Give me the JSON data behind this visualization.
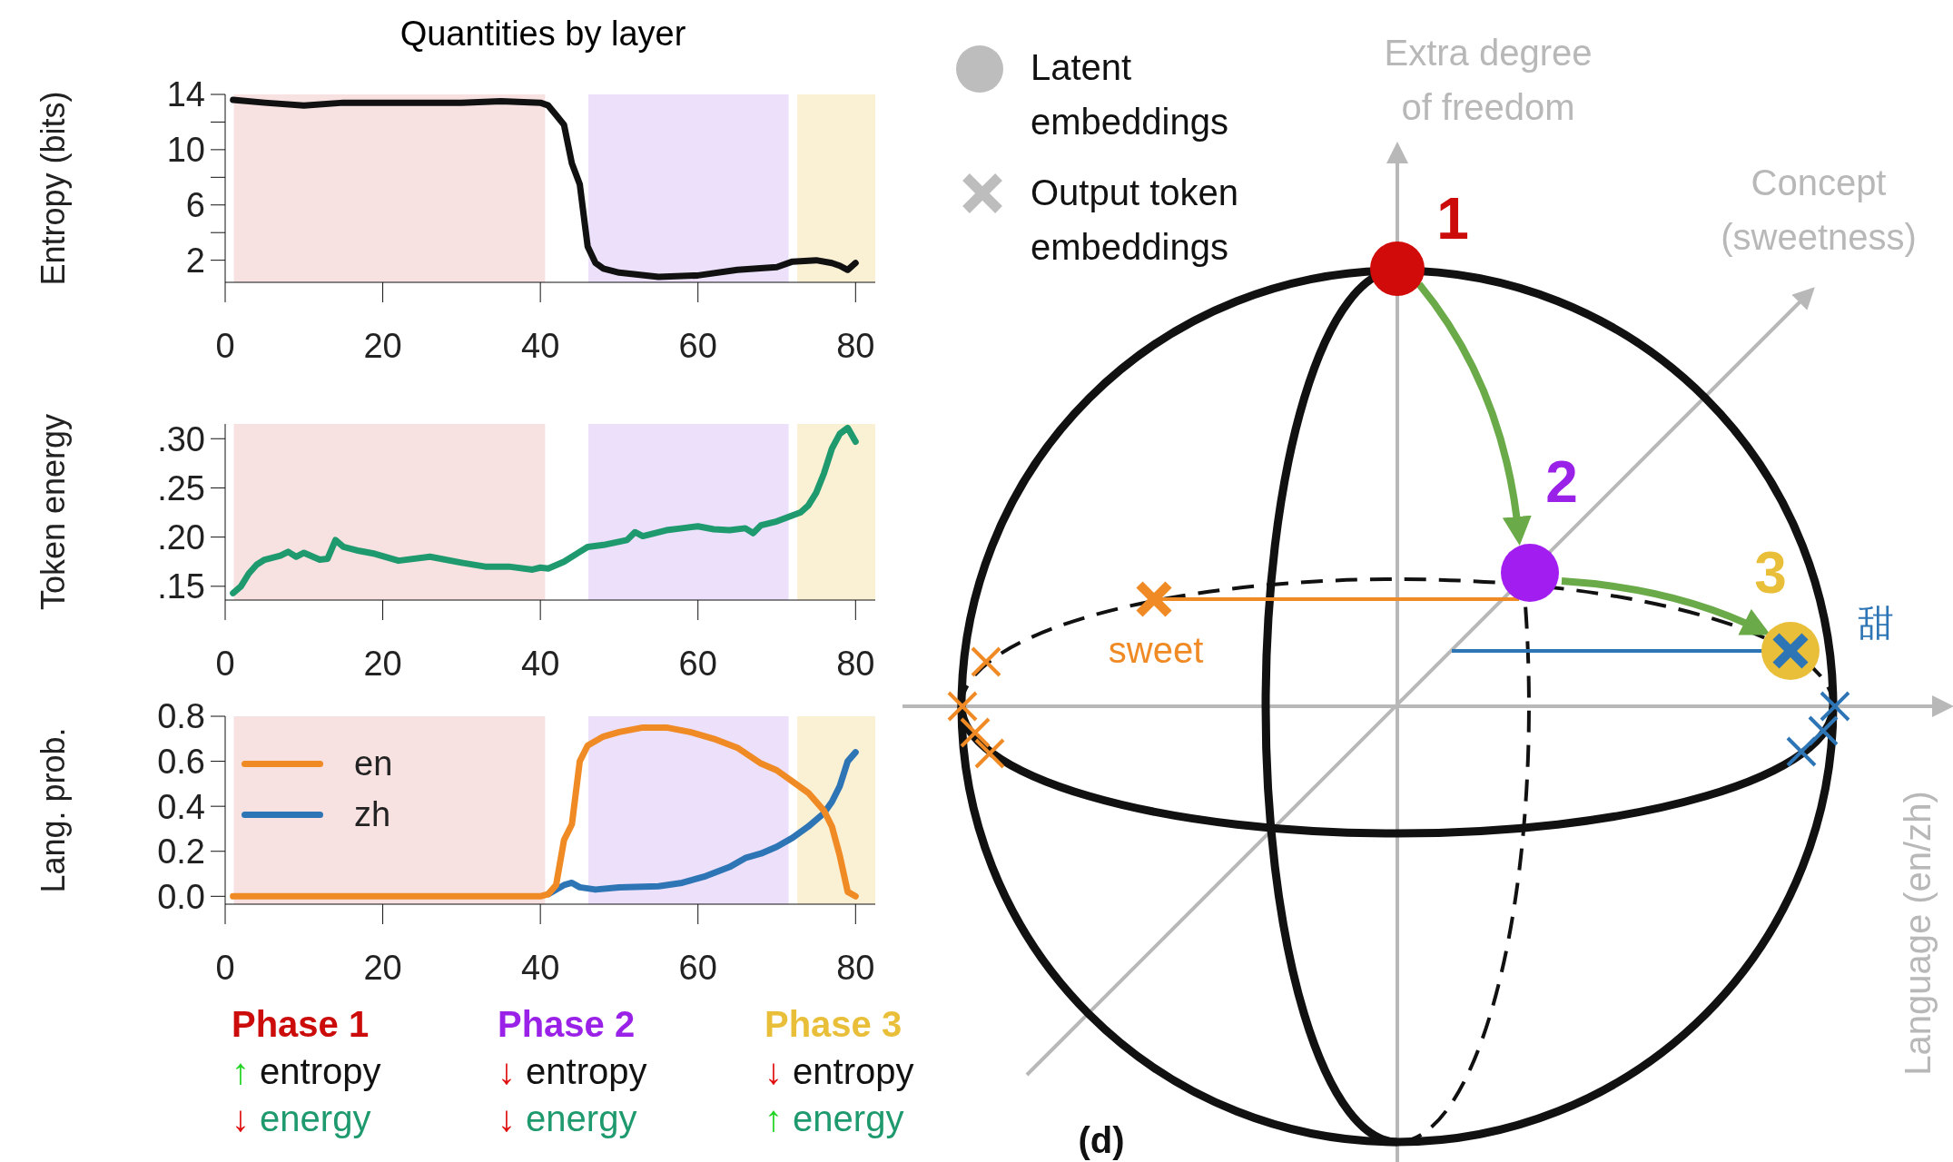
{
  "chart_data": [
    {
      "type": "line",
      "title": "Quantities by layer",
      "ylabel": "Entropy (bits)",
      "xlim": [
        0,
        82.5
      ],
      "xticks": [
        0,
        20,
        40,
        60,
        80
      ],
      "ylim": [
        0.4,
        14
      ],
      "yticks": [
        2,
        {
          "value": 4,
          "label": null
        },
        6,
        {
          "value": 8,
          "label": null
        },
        10,
        {
          "value": 12,
          "label": null
        },
        14
      ],
      "grid": false,
      "legend": false,
      "marker": "none",
      "bands": [
        {
          "axis": "x",
          "from": 1.1,
          "to": 40.6,
          "color": "#f7e1e1"
        },
        {
          "axis": "x",
          "from": 46.1,
          "to": 71.5,
          "color": "#ece0fb"
        },
        {
          "axis": "x",
          "from": 72.6,
          "to": 82.5,
          "color": "#faf0d4"
        }
      ],
      "series": [
        {
          "color": "#111111",
          "x": [
            1,
            5,
            10,
            15,
            20,
            25,
            30,
            35,
            40,
            41,
            42,
            43,
            44,
            45,
            46,
            47,
            48,
            50,
            55,
            60,
            65,
            70,
            72,
            75,
            77,
            78,
            79,
            80
          ],
          "values": [
            13.6,
            13.4,
            13.2,
            13.4,
            13.4,
            13.4,
            13.4,
            13.5,
            13.4,
            13.2,
            12.5,
            11.8,
            9,
            7.5,
            3,
            1.8,
            1.4,
            1.1,
            0.8,
            0.9,
            1.3,
            1.5,
            1.9,
            2.0,
            1.8,
            1.6,
            1.3,
            1.8
          ]
        }
      ]
    },
    {
      "type": "line",
      "ylabel": "Token energy",
      "xlim": [
        0,
        82.5
      ],
      "xticks": [
        0,
        20,
        40,
        60,
        80
      ],
      "ylim": [
        0.136,
        0.315
      ],
      "yticks": [
        {
          "value": 0.15,
          "label": ".15"
        },
        {
          "value": 0.2,
          "label": ".20"
        },
        {
          "value": 0.25,
          "label": ".25"
        },
        {
          "value": 0.3,
          "label": ".30"
        }
      ],
      "grid": false,
      "legend": false,
      "marker": "none",
      "bands": [
        {
          "axis": "x",
          "from": 1.1,
          "to": 40.6,
          "color": "#f7e1e1"
        },
        {
          "axis": "x",
          "from": 46.1,
          "to": 71.5,
          "color": "#ece0fb"
        },
        {
          "axis": "x",
          "from": 72.6,
          "to": 82.5,
          "color": "#faf0d4"
        }
      ],
      "series": [
        {
          "color": "#1f9a6f",
          "x": [
            1,
            2,
            3,
            4,
            5,
            7,
            8,
            9,
            10,
            12,
            13,
            14,
            15,
            17,
            19,
            22,
            26,
            30,
            33,
            36,
            39,
            40,
            41,
            43,
            45,
            46,
            48,
            51,
            52,
            53,
            56,
            58,
            60,
            62,
            64,
            66,
            67,
            68,
            70,
            72,
            73,
            74,
            75,
            76,
            77,
            78,
            79,
            80
          ],
          "values": [
            0.143,
            0.15,
            0.163,
            0.172,
            0.177,
            0.181,
            0.185,
            0.18,
            0.184,
            0.177,
            0.178,
            0.197,
            0.19,
            0.186,
            0.183,
            0.176,
            0.18,
            0.174,
            0.17,
            0.17,
            0.167,
            0.169,
            0.168,
            0.175,
            0.185,
            0.19,
            0.192,
            0.197,
            0.205,
            0.201,
            0.207,
            0.209,
            0.211,
            0.208,
            0.207,
            0.209,
            0.204,
            0.212,
            0.216,
            0.222,
            0.225,
            0.232,
            0.245,
            0.265,
            0.29,
            0.305,
            0.311,
            0.297
          ]
        }
      ]
    },
    {
      "type": "line",
      "ylabel": "Lang. prob.",
      "xlim": [
        0,
        82.5
      ],
      "xticks": [
        0,
        20,
        40,
        60,
        80
      ],
      "ylim": [
        -0.035,
        0.8
      ],
      "yticks": [
        {
          "value": 0,
          "label": "0.0"
        },
        0.2,
        0.4,
        0.6,
        0.8
      ],
      "grid": false,
      "legend": "top left",
      "marker": "none",
      "bands": [
        {
          "axis": "x",
          "from": 1.1,
          "to": 40.6,
          "color": "#f7e1e1"
        },
        {
          "axis": "x",
          "from": 46.1,
          "to": 71.5,
          "color": "#ece0fb"
        },
        {
          "axis": "x",
          "from": 72.6,
          "to": 82.5,
          "color": "#faf0d4"
        }
      ],
      "series": [
        {
          "name": "en",
          "color": "#f08a24",
          "x": [
            1,
            10,
            20,
            30,
            40,
            41,
            42,
            43,
            44,
            45,
            46,
            48,
            50,
            53,
            56,
            59,
            62,
            65,
            68,
            70,
            72,
            74,
            76,
            77,
            78,
            79,
            80
          ],
          "values": [
            0,
            0,
            0,
            0,
            0,
            0.01,
            0.05,
            0.25,
            0.32,
            0.6,
            0.67,
            0.71,
            0.73,
            0.75,
            0.75,
            0.73,
            0.7,
            0.66,
            0.59,
            0.56,
            0.51,
            0.46,
            0.38,
            0.31,
            0.18,
            0.02,
            0
          ]
        },
        {
          "name": "zh",
          "color": "#2e75b6",
          "x": [
            41,
            42,
            43,
            44,
            45,
            47,
            50,
            55,
            58,
            61,
            64,
            66,
            68,
            70,
            72,
            74,
            76,
            77,
            78,
            79,
            80
          ],
          "values": [
            0.01,
            0.03,
            0.05,
            0.06,
            0.04,
            0.03,
            0.04,
            0.045,
            0.06,
            0.09,
            0.13,
            0.17,
            0.19,
            0.22,
            0.26,
            0.31,
            0.37,
            0.42,
            0.49,
            0.6,
            0.64
          ]
        }
      ],
      "annotations": [
        "Phase 1",
        "↑ entropy",
        "↓ energy",
        "Phase 2",
        "↓ entropy",
        "↓ energy",
        "Phase 3",
        "↓ entropy",
        "↑ energy"
      ]
    },
    {
      "type": "other",
      "annotations": [
        "Latent embeddings",
        "Output token embeddings",
        "Extra degree of freedom",
        "Concept (sweetness)",
        "Language (en/zh)",
        "1",
        "2",
        "3",
        "sweet",
        "甜",
        "(d)"
      ]
    }
  ]
}
